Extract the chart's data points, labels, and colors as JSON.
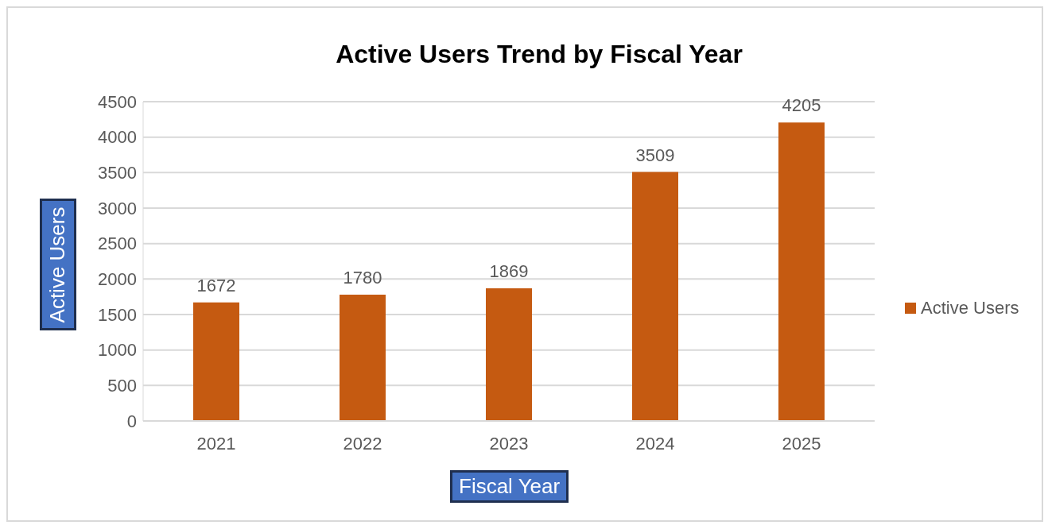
{
  "chart_data": {
    "type": "bar",
    "title": "Active Users Trend by Fiscal Year",
    "xlabel": "Fiscal Year",
    "ylabel": "Active Users",
    "categories": [
      "2021",
      "2022",
      "2023",
      "2024",
      "2025"
    ],
    "series": [
      {
        "name": "Active Users",
        "color": "#c55a11",
        "values": [
          1672,
          1780,
          1869,
          3509,
          4205
        ]
      }
    ],
    "ylim": [
      0,
      4500
    ],
    "yticks": [
      0,
      500,
      1000,
      1500,
      2000,
      2500,
      3000,
      3500,
      4000,
      4500
    ],
    "grid": "y",
    "legend": "right",
    "data_labels": true
  }
}
